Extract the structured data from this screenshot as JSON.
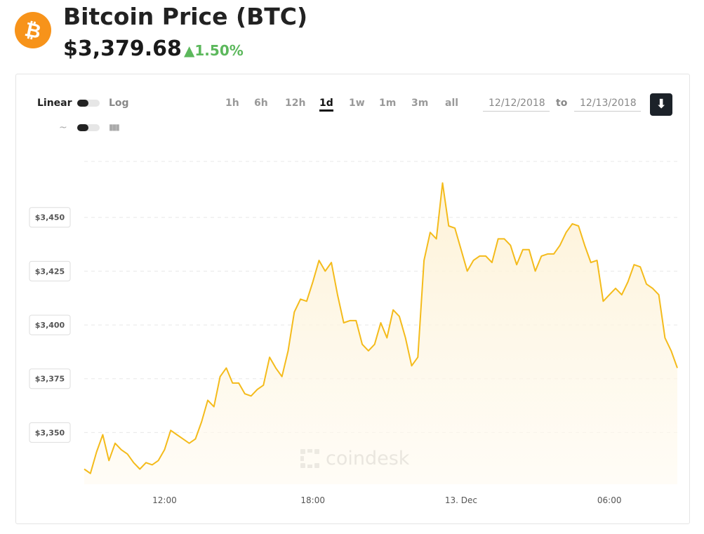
{
  "header": {
    "title": "Bitcoin Price",
    "symbol": "(BTC)",
    "price": "$3,379.68",
    "change": "1.50%"
  },
  "controls": {
    "scale": [
      "Linear",
      "Log"
    ],
    "ranges": [
      "1h",
      "6h",
      "12h",
      "1d",
      "1w",
      "1m",
      "3m",
      "all"
    ],
    "active_range": "1d",
    "date_from": "12/12/2018",
    "date_sep": "to",
    "date_to": "12/13/2018"
  },
  "watermark": "coindesk",
  "chart_data": {
    "type": "line",
    "color": "#f4bb1b",
    "grid": true,
    "categories": [
      null,
      null,
      null,
      null,
      null,
      null,
      null,
      null,
      null,
      null,
      null,
      null,
      null,
      "12:00",
      null,
      null,
      null,
      null,
      null,
      null,
      null,
      null,
      null,
      null,
      null,
      null,
      null,
      null,
      null,
      null,
      null,
      null,
      null,
      null,
      null,
      null,
      null,
      "18:00",
      null,
      null,
      null,
      null,
      null,
      null,
      null,
      null,
      null,
      null,
      null,
      null,
      null,
      null,
      null,
      null,
      null,
      null,
      null,
      null,
      null,
      null,
      null,
      "13. Dec",
      null,
      null,
      null,
      null,
      null,
      null,
      null,
      null,
      null,
      null,
      null,
      null,
      null,
      null,
      null,
      null,
      null,
      null,
      null,
      null,
      null,
      null,
      null,
      "06:00",
      null,
      null,
      null,
      null,
      null,
      null,
      null,
      null,
      null,
      null,
      null
    ],
    "values": [
      3333,
      3331,
      3341,
      3349,
      3337,
      3345,
      3342,
      3340,
      3336,
      3333,
      3336,
      3335,
      3337,
      3342,
      3351,
      3349,
      3347,
      3345,
      3347,
      3355,
      3365,
      3362,
      3376,
      3380,
      3373,
      3373,
      3368,
      3367,
      3370,
      3372,
      3385,
      3380,
      3376,
      3388,
      3406,
      3412,
      3411,
      3420,
      3430,
      3425,
      3429,
      3414,
      3401,
      3402,
      3402,
      3391,
      3388,
      3391,
      3401,
      3394,
      3407,
      3404,
      3394,
      3381,
      3385,
      3430,
      3443,
      3440,
      3466,
      3446,
      3445,
      3435,
      3425,
      3430,
      3432,
      3432,
      3429,
      3440,
      3440,
      3437,
      3428,
      3435,
      3435,
      3425,
      3432,
      3433,
      3433,
      3437,
      3443,
      3447,
      3446,
      3437,
      3429,
      3430,
      3411,
      3414,
      3417,
      3414,
      3420,
      3428,
      3427,
      3419,
      3417,
      3414,
      3394,
      3388,
      3380
    ],
    "ylim": [
      3326,
      3476
    ],
    "yticks": [
      {
        "value": 3350,
        "label": "$3,350"
      },
      {
        "value": 3375,
        "label": "$3,375"
      },
      {
        "value": 3400,
        "label": "$3,400"
      },
      {
        "value": 3425,
        "label": "$3,425"
      },
      {
        "value": 3450,
        "label": "$3,450"
      }
    ]
  }
}
